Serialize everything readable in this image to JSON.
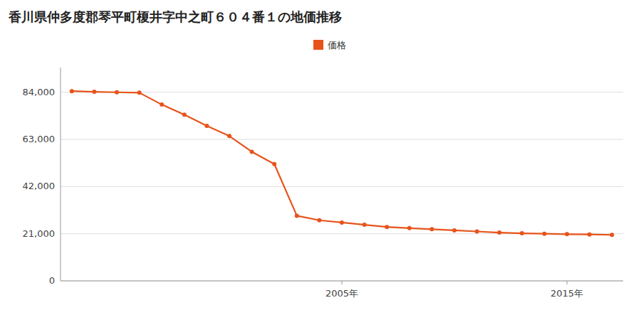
{
  "chart_data": {
    "type": "line",
    "title": "香川県仲多度郡琴平町榎井字中之町６０４番１の地価推移",
    "x": [
      1993,
      1994,
      1995,
      1996,
      1997,
      1998,
      1999,
      2000,
      2001,
      2002,
      2003,
      2004,
      2005,
      2006,
      2007,
      2008,
      2009,
      2010,
      2011,
      2012,
      2013,
      2014,
      2015,
      2016,
      2017
    ],
    "series": [
      {
        "name": "価格",
        "color": "#e8531a",
        "marker": "circle",
        "values": [
          84500,
          84200,
          84000,
          83800,
          78500,
          74000,
          69000,
          64500,
          57500,
          52000,
          29000,
          27000,
          26000,
          25000,
          24000,
          23500,
          23000,
          22500,
          22000,
          21500,
          21200,
          21000,
          20800,
          20700,
          20500
        ]
      }
    ],
    "xlim": [
      1992.5,
      2017.5
    ],
    "xticks": [
      {
        "value": 2005,
        "label": "2005年"
      },
      {
        "value": 2015,
        "label": "2015年"
      }
    ],
    "ylim": [
      0,
      95000
    ],
    "yticks": [
      0,
      {
        "value": 21000,
        "label": "21,000"
      },
      {
        "value": 42000,
        "label": "42,000"
      },
      {
        "value": 63000,
        "label": "63,000"
      },
      {
        "value": 84000,
        "label": "84,000"
      }
    ],
    "grid": true,
    "legend": "top"
  }
}
